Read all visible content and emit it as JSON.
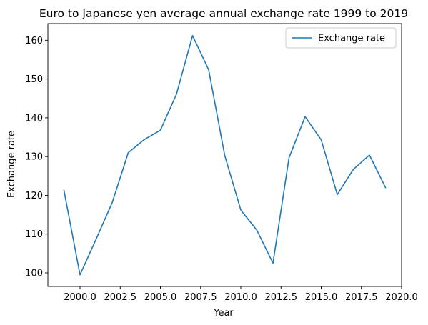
{
  "chart_data": {
    "type": "line",
    "title": "Euro to Japanese yen average annual exchange rate 1999 to 2019",
    "xlabel": "Year",
    "ylabel": "Exchange rate",
    "xlim": [
      1998.0,
      2020.0
    ],
    "ylim": [
      96.5,
      164.3
    ],
    "xticks": [
      2000.0,
      2002.5,
      2005.0,
      2007.5,
      2010.0,
      2012.5,
      2015.0,
      2017.5,
      2020.0
    ],
    "xtick_labels": [
      "2000.0",
      "2002.5",
      "2005.0",
      "2007.5",
      "2010.0",
      "2012.5",
      "2015.0",
      "2017.5",
      "2020.0"
    ],
    "yticks": [
      100,
      110,
      120,
      130,
      140,
      150,
      160
    ],
    "ytick_labels": [
      "100",
      "110",
      "120",
      "130",
      "140",
      "150",
      "160"
    ],
    "legend_position": "top-right",
    "grid": false,
    "series": [
      {
        "name": "Exchange rate",
        "color": "#1f77b4",
        "x": [
          1999,
          2000,
          2001,
          2002,
          2003,
          2004,
          2005,
          2006,
          2007,
          2008,
          2009,
          2010,
          2011,
          2012,
          2013,
          2014,
          2015,
          2016,
          2017,
          2018,
          2019
        ],
        "y": [
          121.3,
          99.5,
          108.7,
          118.1,
          131.0,
          134.4,
          136.8,
          146.1,
          161.2,
          152.4,
          130.3,
          116.2,
          111.0,
          102.5,
          129.7,
          140.3,
          134.3,
          120.2,
          126.7,
          130.4,
          122.0
        ]
      }
    ]
  }
}
